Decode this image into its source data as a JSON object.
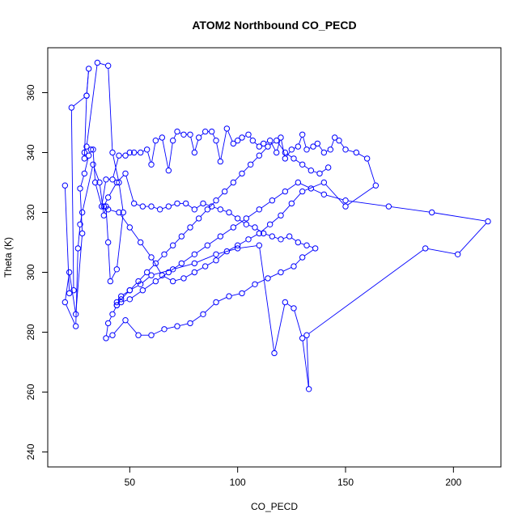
{
  "chart_data": {
    "type": "line",
    "title": "ATOM2 Northbound CO_PECD",
    "xlabel": "CO_PECD",
    "ylabel": "Theta (K)",
    "xlim": [
      12,
      222
    ],
    "ylim": [
      235,
      375
    ],
    "x_ticks": [
      50,
      100,
      150,
      200
    ],
    "y_ticks": [
      240,
      260,
      280,
      300,
      320,
      340,
      360
    ],
    "grid": false,
    "legend": "none",
    "series_color": "#0000ff",
    "markers": "open-circle",
    "x": [
      20,
      22,
      24,
      23,
      30,
      31,
      30,
      29,
      29,
      30,
      35,
      40,
      42,
      45,
      47,
      44,
      41,
      40,
      39,
      38,
      36,
      33,
      28,
      27,
      26,
      25,
      20,
      22,
      25,
      28,
      27,
      29,
      31,
      32,
      33,
      34,
      37,
      39,
      42,
      45,
      48,
      50,
      52,
      55,
      58,
      60,
      62,
      65,
      68,
      70,
      72,
      75,
      78,
      80,
      82,
      85,
      88,
      90,
      92,
      95,
      98,
      100,
      102,
      105,
      107,
      110,
      112,
      115,
      118,
      120,
      122,
      125,
      128,
      130,
      132,
      135,
      137,
      140,
      143,
      145,
      147,
      150,
      155,
      160,
      164,
      150,
      140,
      130,
      125,
      120,
      115,
      110,
      105,
      100,
      95,
      90,
      85,
      80,
      75,
      70,
      65,
      60,
      55,
      50,
      45,
      40,
      38,
      40,
      44,
      48,
      52,
      56,
      60,
      64,
      68,
      72,
      76,
      80,
      84,
      88,
      92,
      96,
      100,
      104,
      108,
      112,
      116,
      120,
      124,
      128,
      132,
      136,
      130,
      126,
      120,
      114,
      108,
      102,
      96,
      90,
      84,
      78,
      72,
      66,
      60,
      54,
      48,
      42,
      39,
      40,
      42,
      44,
      46,
      50,
      55,
      60,
      70,
      80,
      90,
      100,
      110,
      117,
      122,
      126,
      130,
      133,
      132,
      187,
      202,
      216,
      190,
      170,
      150,
      140,
      134,
      128,
      122,
      116,
      110,
      104,
      98,
      92,
      86,
      80,
      74,
      68,
      62,
      56,
      50,
      46,
      44,
      44,
      46,
      50,
      54,
      58,
      62,
      66,
      70,
      74,
      78,
      82,
      86,
      90,
      94,
      98,
      102,
      106,
      110,
      114,
      118,
      122,
      126,
      130,
      134,
      138,
      142
    ],
    "y": [
      329,
      293,
      294,
      355,
      359,
      368,
      359,
      338,
      340,
      342,
      370,
      369,
      340,
      330,
      320,
      301,
      297,
      310,
      322,
      319,
      330,
      336,
      320,
      316,
      308,
      282,
      290,
      300,
      286,
      313,
      328,
      333,
      339,
      341,
      341,
      330,
      322,
      331,
      331,
      339,
      339,
      340,
      340,
      340,
      341,
      336,
      344,
      345,
      334,
      344,
      347,
      346,
      346,
      340,
      345,
      347,
      347,
      344,
      337,
      348,
      343,
      344,
      345,
      346,
      344,
      342,
      343,
      344,
      340,
      345,
      338,
      341,
      342,
      346,
      341,
      342,
      343,
      340,
      341,
      345,
      344,
      341,
      340,
      338,
      329,
      322,
      330,
      327,
      323,
      319,
      316,
      313,
      311,
      309,
      307,
      304,
      302,
      300,
      298,
      297,
      299,
      305,
      310,
      315,
      320,
      321,
      322,
      325,
      330,
      333,
      323,
      322,
      322,
      321,
      322,
      323,
      323,
      321,
      323,
      322,
      321,
      320,
      318,
      316,
      315,
      313,
      312,
      311,
      312,
      310,
      309,
      308,
      305,
      302,
      300,
      298,
      296,
      293,
      292,
      290,
      286,
      283,
      282,
      281,
      279,
      279,
      284,
      279,
      278,
      283,
      286,
      289,
      292,
      294,
      296,
      299,
      301,
      303,
      306,
      308,
      309,
      273,
      290,
      288,
      278,
      261,
      279,
      308,
      306,
      317,
      320,
      322,
      324,
      326,
      328,
      330,
      327,
      324,
      321,
      318,
      315,
      312,
      309,
      306,
      303,
      300,
      297,
      294,
      291,
      290,
      289,
      290,
      291,
      294,
      297,
      300,
      303,
      306,
      309,
      312,
      315,
      318,
      321,
      324,
      327,
      330,
      333,
      336,
      339,
      342,
      344,
      340,
      338,
      336,
      334,
      333,
      335
    ]
  }
}
